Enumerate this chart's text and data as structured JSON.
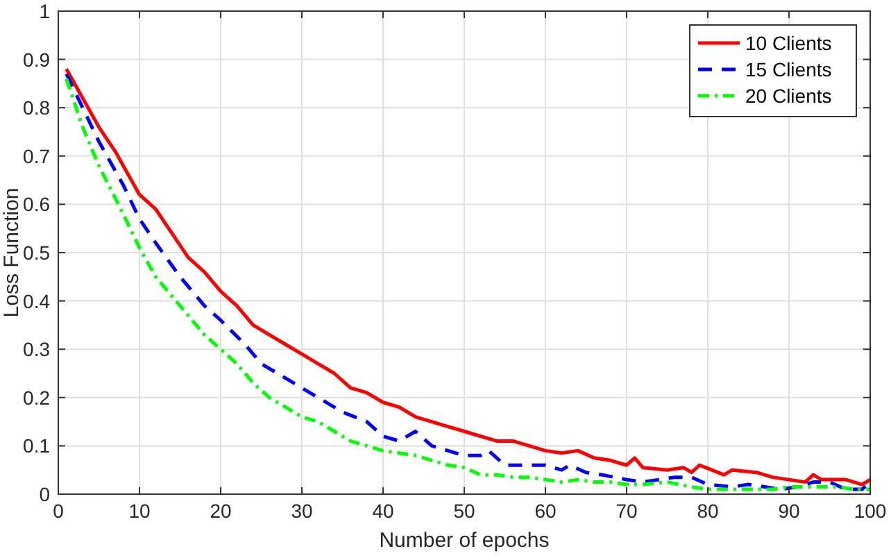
{
  "chart_data": {
    "type": "line",
    "xlabel": "Number of epochs",
    "ylabel": "Loss Function",
    "xlim": [
      0,
      100
    ],
    "ylim": [
      0,
      1
    ],
    "xticks": [
      0,
      10,
      20,
      30,
      40,
      50,
      60,
      70,
      80,
      90,
      100
    ],
    "yticks": [
      0,
      0.1,
      0.2,
      0.3,
      0.4,
      0.5,
      0.6,
      0.7,
      0.8,
      0.9,
      1
    ],
    "grid": true,
    "legend": "top right",
    "series": [
      {
        "name": "10 Clients",
        "color": "#ff0000",
        "line_style": "solid",
        "x": [
          1,
          3,
          5,
          7,
          9,
          10,
          12,
          14,
          16,
          18,
          20,
          22,
          24,
          26,
          28,
          30,
          32,
          34,
          36,
          38,
          40,
          42,
          44,
          46,
          48,
          50,
          52,
          54,
          56,
          58,
          60,
          62,
          64,
          66,
          68,
          70,
          71,
          72,
          75,
          77,
          78,
          79,
          82,
          83,
          86,
          88,
          90,
          92,
          93,
          94,
          97,
          99,
          100
        ],
        "values": [
          0.88,
          0.82,
          0.76,
          0.71,
          0.65,
          0.62,
          0.59,
          0.54,
          0.49,
          0.46,
          0.42,
          0.39,
          0.35,
          0.33,
          0.31,
          0.29,
          0.27,
          0.25,
          0.22,
          0.21,
          0.19,
          0.18,
          0.16,
          0.15,
          0.14,
          0.13,
          0.12,
          0.11,
          0.11,
          0.1,
          0.09,
          0.085,
          0.09,
          0.075,
          0.07,
          0.06,
          0.075,
          0.055,
          0.05,
          0.055,
          0.045,
          0.06,
          0.04,
          0.05,
          0.045,
          0.035,
          0.03,
          0.025,
          0.04,
          0.03,
          0.03,
          0.02,
          0.03
        ]
      },
      {
        "name": "15 Clients",
        "color": "#0000ff",
        "line_style": "dashed",
        "x": [
          1,
          3,
          5,
          8,
          10,
          12,
          15,
          18,
          20,
          23,
          25,
          28,
          30,
          32,
          35,
          38,
          40,
          42,
          44,
          46,
          48,
          50,
          52,
          53,
          55,
          58,
          60,
          62,
          63,
          65,
          67,
          70,
          72,
          74,
          76,
          78,
          80,
          83,
          85,
          87,
          89,
          91,
          93,
          95,
          97,
          99,
          100
        ],
        "values": [
          0.87,
          0.8,
          0.73,
          0.64,
          0.57,
          0.52,
          0.45,
          0.39,
          0.36,
          0.31,
          0.27,
          0.24,
          0.22,
          0.2,
          0.17,
          0.15,
          0.12,
          0.11,
          0.13,
          0.1,
          0.09,
          0.08,
          0.08,
          0.09,
          0.06,
          0.06,
          0.06,
          0.05,
          0.06,
          0.045,
          0.04,
          0.03,
          0.025,
          0.03,
          0.035,
          0.035,
          0.02,
          0.015,
          0.02,
          0.015,
          0.01,
          0.015,
          0.025,
          0.025,
          0.01,
          0.01,
          0.025
        ]
      },
      {
        "name": "20 Clients",
        "color": "#00ff00",
        "line_style": "dashdot",
        "x": [
          1,
          3,
          5,
          8,
          10,
          12,
          14,
          16,
          18,
          20,
          22,
          24,
          26,
          28,
          30,
          32,
          34,
          36,
          38,
          40,
          42,
          44,
          46,
          48,
          50,
          52,
          54,
          56,
          58,
          60,
          62,
          64,
          66,
          68,
          70,
          72,
          75,
          78,
          80,
          85,
          88,
          90,
          93,
          96,
          98,
          100
        ],
        "values": [
          0.86,
          0.76,
          0.68,
          0.58,
          0.51,
          0.45,
          0.41,
          0.37,
          0.33,
          0.3,
          0.27,
          0.23,
          0.2,
          0.18,
          0.16,
          0.15,
          0.13,
          0.11,
          0.1,
          0.09,
          0.085,
          0.08,
          0.07,
          0.06,
          0.055,
          0.04,
          0.04,
          0.035,
          0.035,
          0.03,
          0.025,
          0.03,
          0.025,
          0.025,
          0.02,
          0.02,
          0.025,
          0.015,
          0.01,
          0.01,
          0.01,
          0.015,
          0.015,
          0.015,
          0.01,
          0.01
        ]
      }
    ]
  }
}
